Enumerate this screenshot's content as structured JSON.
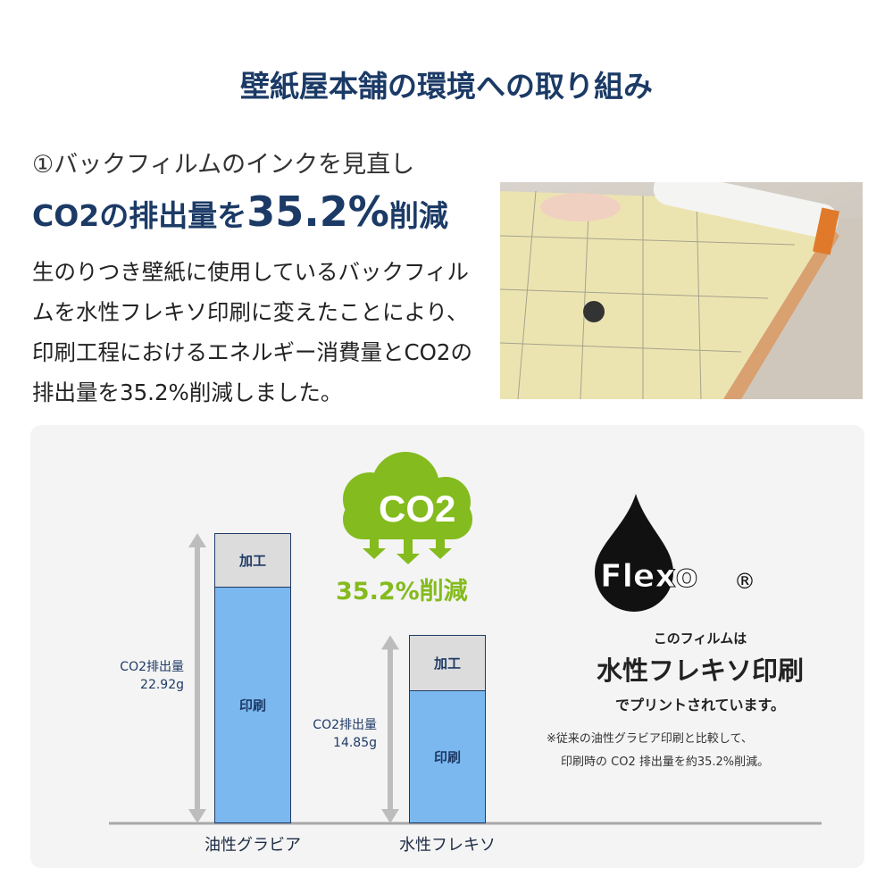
{
  "header": {
    "title": "壁紙屋本舗の環境への取り組み"
  },
  "section": {
    "heading": "①バックフィルムのインクを見直し",
    "headline_prefix": "CO2の排出量を",
    "headline_value": "35.2%",
    "headline_suffix": "削減",
    "body": "生のりつき壁紙に使用しているバックフィルムを水性フレキソ印刷に変えたことにより、印刷工程におけるエネルギー消費量とCO2の排出量を35.2%削減しました。"
  },
  "infographic": {
    "cloud_text": "CO2",
    "reduction": "35.2%削減",
    "logo_text": "Flexo",
    "registered": "®",
    "note1": "このフィルムは",
    "note2": "水性フレキソ印刷",
    "note3": "でプリントされています。",
    "footnote1": "※従来の油性グラビア印刷と比較して、",
    "footnote2": "印刷時の CO2 排出量を約35.2%削減。"
  },
  "chart_data": {
    "type": "bar",
    "stacked": true,
    "categories": [
      "油性グラビア",
      "水性フレキソ"
    ],
    "segment_labels": [
      "印刷",
      "加工"
    ],
    "totals": [
      22.92,
      14.85
    ],
    "total_labels": [
      "CO2排出量\n22.92g",
      "CO2排出量\n14.85g"
    ],
    "unit": "g",
    "colors": {
      "印刷": "#7ab8ef",
      "加工": "#dcdcdc"
    }
  },
  "colors": {
    "navy": "#1b3a66",
    "green": "#84bb1e"
  }
}
